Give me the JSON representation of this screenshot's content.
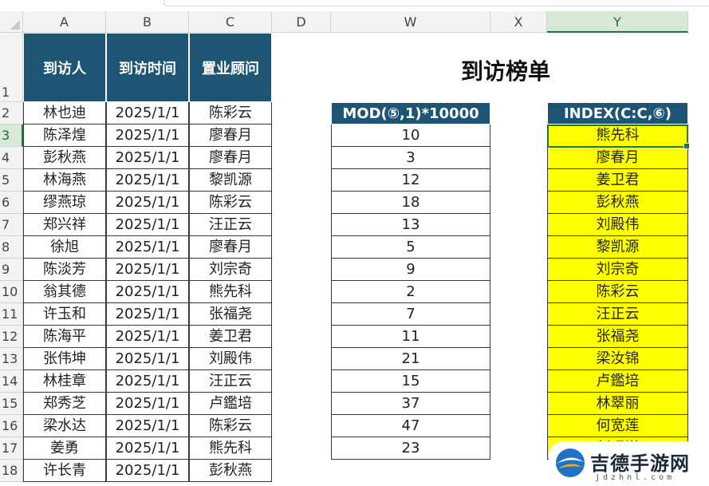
{
  "columns": [
    "A",
    "B",
    "C",
    "D",
    "W",
    "X",
    "Y"
  ],
  "rows": [
    "1",
    "2",
    "3",
    "4",
    "5",
    "6",
    "7",
    "8",
    "9",
    "10",
    "11",
    "12",
    "13",
    "14",
    "15",
    "16",
    "17",
    "18"
  ],
  "left_table": {
    "headers": [
      "到访人",
      "到访时间",
      "置业顾问"
    ],
    "rows": [
      [
        "林也迪",
        "2025/1/1",
        "陈彩云"
      ],
      [
        "陈泽煌",
        "2025/1/1",
        "廖春月"
      ],
      [
        "彭秋燕",
        "2025/1/1",
        "廖春月"
      ],
      [
        "林海燕",
        "2025/1/1",
        "黎凯源"
      ],
      [
        "缪燕琼",
        "2025/1/1",
        "陈彩云"
      ],
      [
        "郑兴祥",
        "2025/1/1",
        "汪正云"
      ],
      [
        "徐旭",
        "2025/1/1",
        "廖春月"
      ],
      [
        "陈淡芳",
        "2025/1/1",
        "刘宗奇"
      ],
      [
        "翁其德",
        "2025/1/1",
        "熊先科"
      ],
      [
        "许玉和",
        "2025/1/1",
        "张福尧"
      ],
      [
        "陈海平",
        "2025/1/1",
        "姜卫君"
      ],
      [
        "张伟坤",
        "2025/1/1",
        "刘殿伟"
      ],
      [
        "林桂章",
        "2025/1/1",
        "汪正云"
      ],
      [
        "郑秀芝",
        "2025/1/1",
        "卢鑑培"
      ],
      [
        "梁水达",
        "2025/1/1",
        "陈彩云"
      ],
      [
        "姜勇",
        "2025/1/1",
        "熊先科"
      ],
      [
        "许长青",
        "2025/1/1",
        "彭秋燕"
      ]
    ]
  },
  "title": "到访榜单",
  "w_column": {
    "header": "MOD(⑤,1)*10000",
    "values": [
      "10",
      "3",
      "12",
      "18",
      "13",
      "5",
      "9",
      "2",
      "7",
      "11",
      "21",
      "15",
      "37",
      "47",
      "23"
    ]
  },
  "y_column": {
    "header": "INDEX(C:C,⑥)",
    "values": [
      "熊先科",
      "廖春月",
      "姜卫君",
      "彭秋燕",
      "刘殿伟",
      "黎凯源",
      "刘宗奇",
      "陈彩云",
      "汪正云",
      "张福尧",
      "梁汝锦",
      "卢鑑培",
      "林翠丽",
      "何宽莲",
      "刘昭洋"
    ]
  },
  "watermark": {
    "text": "吉德手游网",
    "sub": "jdzhnl.com"
  },
  "colors": {
    "header_fill": "#1f5574",
    "highlight": "#ffff00",
    "selection": "#217346"
  }
}
